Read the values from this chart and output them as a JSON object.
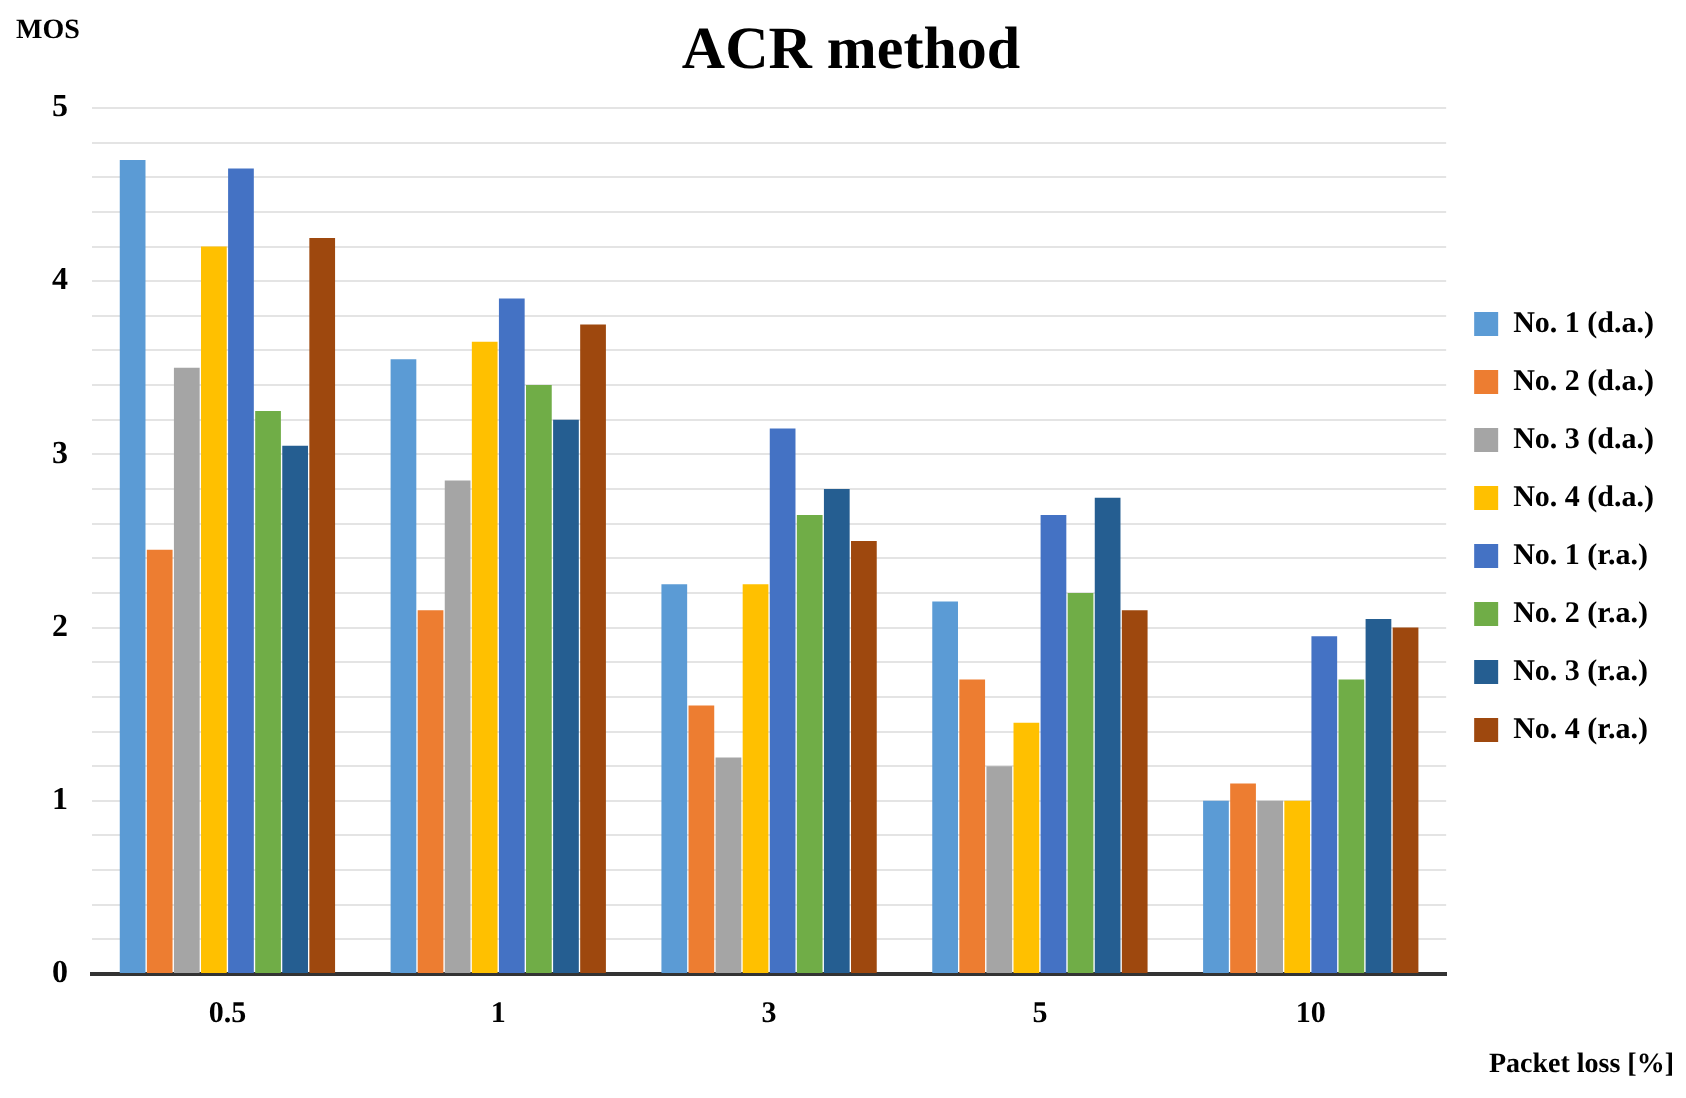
{
  "chart_data": {
    "type": "bar",
    "title": "ACR method",
    "xlabel": "Packet loss [%]",
    "ylabel": "MOS",
    "categories": [
      "0.5",
      "1",
      "3",
      "5",
      "10"
    ],
    "series": [
      {
        "name": "No. 1 (d.a.)",
        "color": "#5b9bd5",
        "values": [
          4.7,
          3.55,
          2.25,
          2.15,
          1.0
        ]
      },
      {
        "name": "No. 2 (d.a.)",
        "color": "#ed7d31",
        "values": [
          2.45,
          2.1,
          1.55,
          1.7,
          1.1
        ]
      },
      {
        "name": "No. 3 (d.a.)",
        "color": "#a5a5a5",
        "values": [
          3.5,
          2.85,
          1.25,
          1.2,
          1.0
        ]
      },
      {
        "name": "No. 4 (d.a.)",
        "color": "#ffc000",
        "values": [
          4.2,
          3.65,
          2.25,
          1.45,
          1.0
        ]
      },
      {
        "name": "No. 1 (r.a.)",
        "color": "#4472c4",
        "values": [
          4.65,
          3.9,
          3.15,
          2.65,
          1.95
        ]
      },
      {
        "name": "No. 2 (r.a.)",
        "color": "#70ad47",
        "values": [
          3.25,
          3.4,
          2.65,
          2.2,
          1.7
        ]
      },
      {
        "name": "No. 3 (r.a.)",
        "color": "#255e91",
        "values": [
          3.05,
          3.2,
          2.8,
          2.75,
          2.05
        ]
      },
      {
        "name": "No. 4 (r.a.)",
        "color": "#9e480e",
        "values": [
          4.25,
          3.75,
          2.5,
          2.1,
          2.0
        ]
      }
    ],
    "ylim": [
      0,
      5
    ],
    "yticks": [
      0,
      {
        "value": 0.2,
        "label": null
      },
      {
        "value": 0.4,
        "label": null
      },
      {
        "value": 0.6,
        "label": null
      },
      {
        "value": 0.8,
        "label": null
      },
      1,
      {
        "value": 1.2,
        "label": null
      },
      {
        "value": 1.4,
        "label": null
      },
      {
        "value": 1.6,
        "label": null
      },
      {
        "value": 1.8,
        "label": null
      },
      2,
      {
        "value": 2.2,
        "label": null
      },
      {
        "value": 2.4,
        "label": null
      },
      {
        "value": 2.6,
        "label": null
      },
      {
        "value": 2.8,
        "label": null
      },
      3,
      {
        "value": 3.2,
        "label": null
      },
      {
        "value": 3.4,
        "label": null
      },
      {
        "value": 3.6,
        "label": null
      },
      {
        "value": 3.8,
        "label": null
      },
      4,
      {
        "value": 4.2,
        "label": null
      },
      {
        "value": 4.4,
        "label": null
      },
      {
        "value": 4.6,
        "label": null
      },
      {
        "value": 4.8,
        "label": null
      },
      5
    ],
    "grid": "y",
    "legend": "right"
  }
}
